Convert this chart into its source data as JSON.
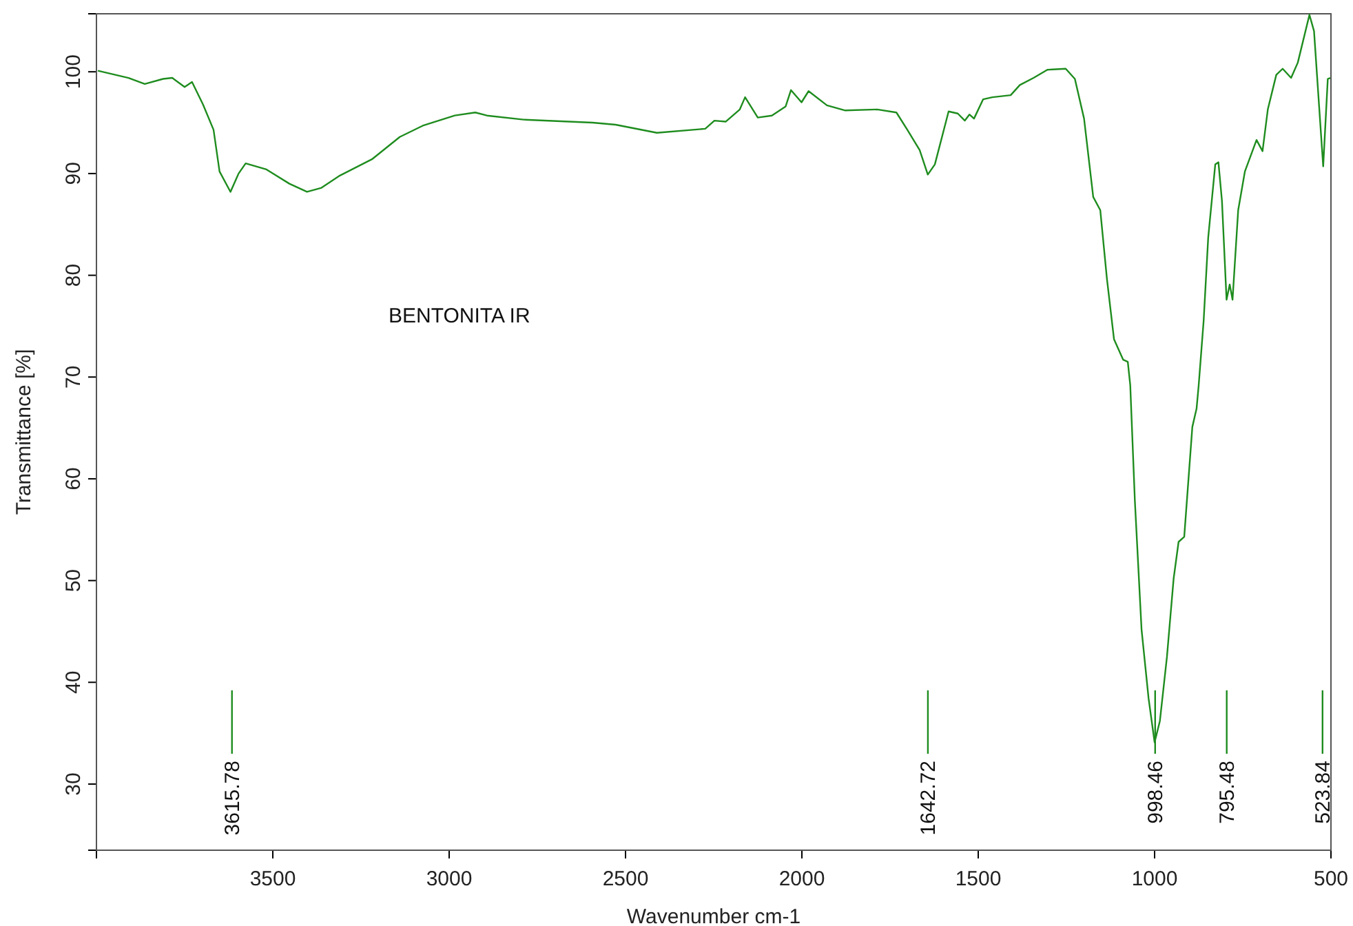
{
  "chart_data": {
    "type": "line",
    "xlabel": "Wavenumber cm-1",
    "ylabel": "Transmittance [%]",
    "xlim": [
      4000,
      500
    ],
    "ylim": [
      23.5,
      105.7
    ],
    "xticks": [
      3500,
      3000,
      2500,
      2000,
      1500,
      1000,
      500
    ],
    "yticks": [
      30,
      40,
      50,
      60,
      70,
      80,
      90,
      100
    ],
    "grid": false,
    "marker": "none",
    "line_style": "solid",
    "series": [
      {
        "color": "#1e8c1e",
        "x": [
          3996,
          3909,
          3863,
          3811,
          3785,
          3750,
          3729,
          3698,
          3668,
          3651,
          3620,
          3597,
          3577,
          3518,
          3453,
          3403,
          3362,
          3310,
          3219,
          3140,
          3075,
          2984,
          2926,
          2893,
          2789,
          2593,
          2528,
          2411,
          2274,
          2248,
          2216,
          2176,
          2161,
          2125,
          2085,
          2046,
          2031,
          2001,
          1981,
          1929,
          1877,
          1786,
          1732,
          1701,
          1666,
          1643,
          1623,
          1584,
          1558,
          1538,
          1525,
          1512,
          1486,
          1460,
          1408,
          1382,
          1343,
          1304,
          1252,
          1226,
          1200,
          1174,
          1154,
          1135,
          1115,
          1089,
          1076,
          1069,
          1056,
          1037,
          1017,
          1000,
          985,
          965,
          946,
          932,
          916,
          893,
          881,
          875,
          861,
          848,
          828,
          819,
          809,
          796,
          787,
          779,
          763,
          744,
          711,
          694,
          679,
          655,
          637,
          613,
          594,
          561,
          548,
          522,
          509,
          502
        ],
        "values": [
          100.1,
          99.4,
          98.8,
          99.3,
          99.4,
          98.5,
          99.0,
          96.8,
          94.3,
          90.2,
          88.2,
          90.0,
          91.0,
          90.4,
          89.0,
          88.2,
          88.6,
          89.8,
          91.4,
          93.6,
          94.7,
          95.7,
          96.0,
          95.7,
          95.3,
          95.0,
          94.8,
          94.0,
          94.4,
          95.2,
          95.1,
          96.3,
          97.5,
          95.5,
          95.7,
          96.6,
          98.2,
          97.0,
          98.1,
          96.7,
          96.2,
          96.3,
          96.0,
          94.3,
          92.3,
          89.9,
          90.9,
          96.1,
          95.9,
          95.2,
          95.8,
          95.4,
          97.3,
          97.5,
          97.7,
          98.7,
          99.4,
          100.2,
          100.3,
          99.3,
          95.4,
          87.7,
          86.4,
          79.6,
          73.7,
          71.7,
          71.5,
          69.2,
          57.9,
          45.2,
          38.4,
          34.1,
          36.2,
          42.5,
          50.2,
          53.8,
          54.3,
          65.1,
          66.9,
          69.2,
          75.5,
          83.7,
          90.9,
          91.1,
          87.3,
          77.6,
          79.1,
          77.6,
          86.4,
          90.2,
          93.3,
          92.2,
          96.3,
          99.7,
          100.3,
          99.4,
          100.9,
          105.6,
          104.0,
          90.7,
          99.3,
          99.4
        ]
      }
    ],
    "annotations": [
      "BENTONITA IR"
    ],
    "ref_lines": [
      {
        "axis": "x",
        "value": 3615.78,
        "label": "3615.78"
      },
      {
        "axis": "x",
        "value": 1642.72,
        "label": "1642.72"
      },
      {
        "axis": "x",
        "value": 998.46,
        "label": "998.46"
      },
      {
        "axis": "x",
        "value": 795.48,
        "label": "795.48"
      },
      {
        "axis": "x",
        "value": 523.84,
        "label": "523.84"
      }
    ]
  }
}
